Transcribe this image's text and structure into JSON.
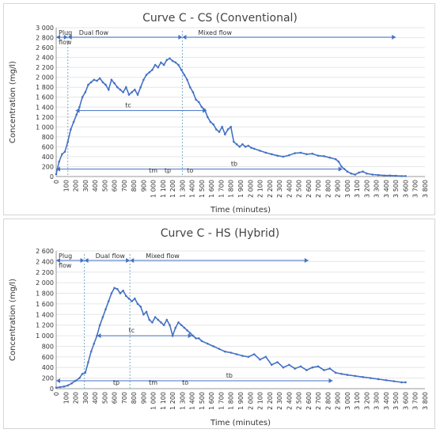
{
  "chart_data": [
    {
      "type": "line",
      "title": "Curve C - CS (Conventional)",
      "xlabel": "Time (minutes)",
      "ylabel": "Concentration (mg/l)",
      "xlim": [
        0,
        3800
      ],
      "ylim": [
        0,
        3000
      ],
      "xticks": [
        0,
        100,
        200,
        300,
        400,
        500,
        600,
        700,
        800,
        900,
        1000,
        1100,
        1200,
        1300,
        1400,
        1500,
        1600,
        1700,
        1800,
        1900,
        2000,
        2100,
        2200,
        2300,
        2400,
        2500,
        2600,
        2700,
        2800,
        2900,
        3000,
        3100,
        3200,
        3300,
        3400,
        3500,
        3600,
        3700,
        3800
      ],
      "xtick_labels": [
        "0",
        "100",
        "200",
        "300",
        "400",
        "500",
        "600",
        "700",
        "800",
        "900",
        "1 000",
        "1 100",
        "1 200",
        "1 300",
        "1 400",
        "1 500",
        "1 600",
        "1 700",
        "1 800",
        "1 900",
        "2 000",
        "2 100",
        "2 200",
        "2 300",
        "2 400",
        "2 500",
        "2 600",
        "2 700",
        "2 800",
        "2 900",
        "3 000",
        "3 100",
        "3 200",
        "3 300",
        "3 400",
        "3 500",
        "3 600",
        "3 700",
        "3 800"
      ],
      "yticks": [
        0,
        200,
        400,
        600,
        800,
        1000,
        1200,
        1400,
        1600,
        1800,
        2000,
        2200,
        2400,
        2600,
        2800,
        3000
      ],
      "ytick_labels": [
        "0",
        "200",
        "400",
        "600",
        "800",
        "1 000",
        "1 200",
        "1 400",
        "1 600",
        "1 800",
        "2 000",
        "2 200",
        "2 400",
        "2 600",
        "2 800",
        "3 000"
      ],
      "grid": "horizontal",
      "series": [
        {
          "x": [
            0,
            30,
            60,
            90,
            120,
            150,
            180,
            210,
            240,
            270,
            300,
            330,
            360,
            390,
            420,
            450,
            480,
            510,
            540,
            570,
            600,
            630,
            660,
            690,
            720,
            750,
            780,
            810,
            840,
            870,
            900,
            930,
            960,
            990,
            1020,
            1050,
            1080,
            1110,
            1140,
            1170,
            1200,
            1230,
            1260,
            1290,
            1320,
            1350,
            1380,
            1410,
            1440,
            1470,
            1500,
            1530,
            1560,
            1590,
            1620,
            1650,
            1680,
            1710,
            1740,
            1770,
            1800,
            1830,
            1860,
            1890,
            1920,
            1950,
            1980,
            2010,
            2040,
            2100,
            2160,
            2220,
            2280,
            2340,
            2400,
            2460,
            2520,
            2580,
            2640,
            2700,
            2760,
            2820,
            2880,
            2910,
            2940,
            2970,
            3000,
            3040,
            3080,
            3120,
            3160,
            3200,
            3260,
            3320,
            3380,
            3440,
            3500,
            3560,
            3600
          ],
          "y": [
            50,
            300,
            450,
            500,
            700,
            950,
            1100,
            1250,
            1400,
            1600,
            1700,
            1850,
            1900,
            1950,
            1930,
            1980,
            1900,
            1850,
            1750,
            1950,
            1880,
            1800,
            1750,
            1700,
            1800,
            1650,
            1700,
            1750,
            1650,
            1800,
            1950,
            2050,
            2100,
            2150,
            2250,
            2200,
            2300,
            2250,
            2350,
            2380,
            2330,
            2300,
            2250,
            2150,
            2050,
            1950,
            1800,
            1700,
            1550,
            1500,
            1400,
            1350,
            1200,
            1100,
            1050,
            950,
            900,
            1000,
            850,
            950,
            1000,
            700,
            650,
            600,
            650,
            600,
            620,
            580,
            560,
            520,
            480,
            450,
            420,
            400,
            430,
            470,
            480,
            450,
            460,
            420,
            410,
            380,
            350,
            300,
            200,
            150,
            100,
            60,
            40,
            80,
            100,
            60,
            40,
            30,
            20,
            20,
            15,
            10,
            10
          ]
        }
      ],
      "annotations": {
        "phases": [
          "Plug flow",
          "Dual flow",
          "Mixed flow"
        ],
        "plug_range": [
          0,
          120
        ],
        "dual_range": [
          120,
          1300
        ],
        "mixed_range": [
          1300,
          3500
        ],
        "tc": {
          "label": "tc",
          "x_start": 200,
          "x_end": 1550,
          "y": 1330
        },
        "tb": {
          "label": "tb",
          "x_start": 0,
          "x_end": 2950,
          "y": 150
        },
        "tm": {
          "label": "tm",
          "x": 1000
        },
        "tp": {
          "label": "tp",
          "x": 1150
        },
        "to": {
          "label": "to",
          "x": 1380
        }
      }
    },
    {
      "type": "line",
      "title": "Curve C - HS (Hybrid)",
      "xlabel": "Time (minutes)",
      "ylabel": "Concentration (mg/l)",
      "xlim": [
        0,
        3800
      ],
      "ylim": [
        0,
        2600
      ],
      "xticks": [
        0,
        100,
        200,
        300,
        400,
        500,
        600,
        700,
        800,
        900,
        1000,
        1100,
        1200,
        1300,
        1400,
        1500,
        1600,
        1700,
        1800,
        1900,
        2000,
        2100,
        2200,
        2300,
        2400,
        2500,
        2600,
        2700,
        2800,
        2900,
        3000,
        3100,
        3200,
        3300,
        3400,
        3500,
        3600,
        3700,
        3800
      ],
      "xtick_labels": [
        "0",
        "100",
        "200",
        "300",
        "400",
        "500",
        "600",
        "700",
        "800",
        "900",
        "1 000",
        "1 100",
        "1 200",
        "1 300",
        "1 400",
        "1 500",
        "1 600",
        "1 700",
        "1 800",
        "1 900",
        "2 000",
        "2 100",
        "2 200",
        "2 300",
        "2 400",
        "2 500",
        "2 600",
        "2 700",
        "2 800",
        "2 900",
        "3 000",
        "3 100",
        "3 200",
        "3 300",
        "3 400",
        "3 500",
        "3 600",
        "3 700",
        "3 800"
      ],
      "yticks": [
        0,
        200,
        400,
        600,
        800,
        1000,
        1200,
        1400,
        1600,
        1800,
        2000,
        2200,
        2400,
        2600
      ],
      "ytick_labels": [
        "0",
        "200",
        "400",
        "600",
        "800",
        "1 000",
        "1 200",
        "1 400",
        "1 600",
        "1 800",
        "2 000",
        "2 200",
        "2 400",
        "2 600"
      ],
      "grid": "horizontal",
      "series": [
        {
          "x": [
            0,
            40,
            80,
            120,
            160,
            200,
            240,
            270,
            300,
            330,
            360,
            390,
            420,
            450,
            480,
            510,
            540,
            570,
            600,
            630,
            660,
            690,
            720,
            750,
            780,
            810,
            840,
            870,
            900,
            930,
            960,
            990,
            1020,
            1050,
            1080,
            1110,
            1140,
            1170,
            1200,
            1230,
            1260,
            1290,
            1320,
            1350,
            1380,
            1410,
            1440,
            1470,
            1500,
            1560,
            1620,
            1680,
            1740,
            1800,
            1860,
            1920,
            1980,
            2040,
            2100,
            2160,
            2220,
            2280,
            2340,
            2400,
            2460,
            2520,
            2580,
            2640,
            2700,
            2760,
            2820,
            2880,
            2940,
            3000,
            3080,
            3160,
            3240,
            3320,
            3400,
            3480,
            3560,
            3600
          ],
          "y": [
            20,
            30,
            40,
            60,
            100,
            150,
            200,
            280,
            300,
            500,
            700,
            850,
            1000,
            1200,
            1350,
            1500,
            1650,
            1800,
            1900,
            1880,
            1800,
            1850,
            1750,
            1700,
            1650,
            1700,
            1600,
            1550,
            1400,
            1450,
            1300,
            1250,
            1350,
            1300,
            1250,
            1200,
            1300,
            1200,
            1000,
            1150,
            1250,
            1200,
            1150,
            1100,
            1050,
            1000,
            950,
            950,
            900,
            850,
            800,
            750,
            700,
            680,
            650,
            620,
            600,
            650,
            550,
            600,
            450,
            500,
            400,
            450,
            380,
            420,
            350,
            400,
            420,
            350,
            380,
            300,
            280,
            260,
            240,
            220,
            200,
            180,
            160,
            140,
            120,
            120
          ]
        }
      ],
      "annotations": {
        "phases": [
          "Plug flow",
          "Dual flow",
          "Mixed flow"
        ],
        "plug_range": [
          0,
          290
        ],
        "dual_range": [
          290,
          760
        ],
        "mixed_range": [
          760,
          2600
        ],
        "tc": {
          "label": "tc",
          "x_start": 420,
          "x_end": 1400,
          "y": 1000
        },
        "tb": {
          "label": "tb",
          "x_start": 0,
          "x_end": 2850,
          "y": 150
        },
        "tp": {
          "label": "tp",
          "x": 620
        },
        "tm": {
          "label": "tm",
          "x": 1000
        },
        "to": {
          "label": "to",
          "x": 1330
        }
      }
    }
  ]
}
